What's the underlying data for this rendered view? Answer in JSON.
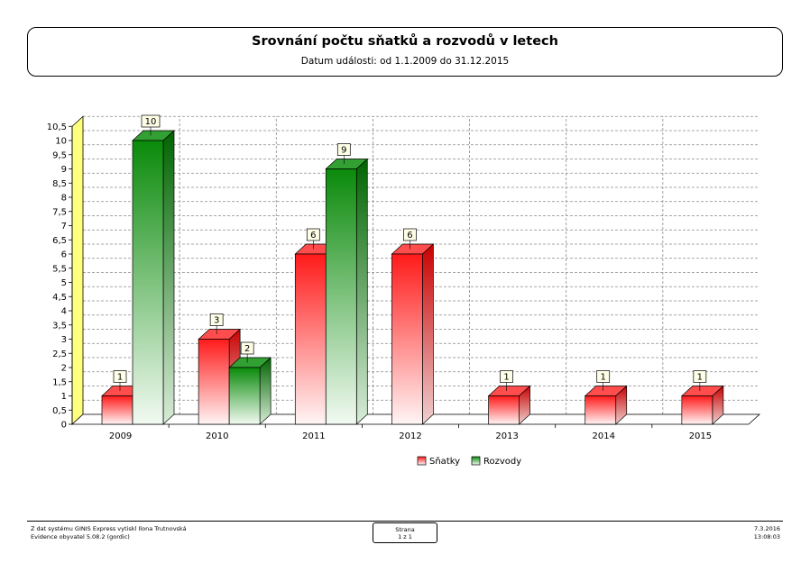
{
  "header": {
    "title": "Srovnání počtu sňatků a rozvodů v letech",
    "subtitle": "Datum události: od 1.1.2009 do 31.12.2015"
  },
  "chart_data": {
    "type": "bar",
    "categories": [
      "2009",
      "2010",
      "2011",
      "2012",
      "2013",
      "2014",
      "2015"
    ],
    "series": [
      {
        "name": "Sňatky",
        "values": [
          1,
          3,
          6,
          6,
          1,
          1,
          1
        ],
        "color": "#ff0000"
      },
      {
        "name": "Rozvody",
        "values": [
          10,
          2,
          9,
          null,
          null,
          null,
          null
        ],
        "color": "#008000"
      }
    ],
    "y_ticks": [
      "0",
      "0,5",
      "1",
      "1,5",
      "2",
      "2,5",
      "3",
      "3,5",
      "4",
      "4,5",
      "5",
      "5,5",
      "6",
      "6,5",
      "7",
      "7,5",
      "8",
      "8,5",
      "9",
      "9,5",
      "10",
      "10,5"
    ],
    "ylim": [
      0,
      10.5
    ],
    "grid": true,
    "legend_position": "bottom",
    "style": "3d"
  },
  "footer": {
    "left_line1": "Z dat systému GINIS Express vytiskl Ilona Trutnovská",
    "left_line2": "Evidence obyvatel 5.08.2 (gordic)",
    "page_label": "Strana",
    "page_value": "1 z 1",
    "date": "7.3.2016",
    "time": "13:08:03"
  }
}
